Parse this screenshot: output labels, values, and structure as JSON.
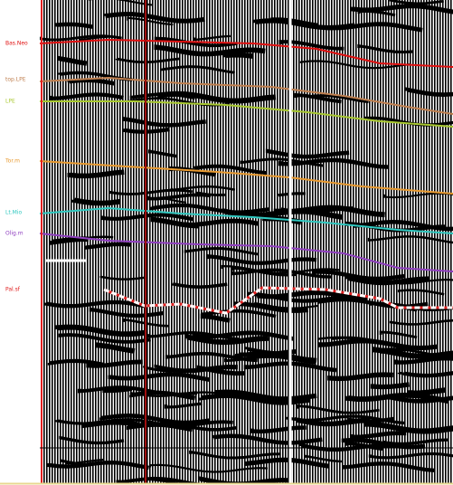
{
  "horizons": [
    {
      "label": "Bas.Neo",
      "color": "#e01010"
    },
    {
      "label": "top.LPE",
      "color": "#c08050"
    },
    {
      "label": "LPE",
      "color": "#a8c830"
    },
    {
      "label": "Tor.m",
      "color": "#e89a30"
    },
    {
      "label": "Lt.Mio",
      "color": "#30c8c0"
    },
    {
      "label": "Olig.m",
      "color": "#9040c0"
    },
    {
      "label": "Pal.sf",
      "color": "#ffffff"
    }
  ]
}
